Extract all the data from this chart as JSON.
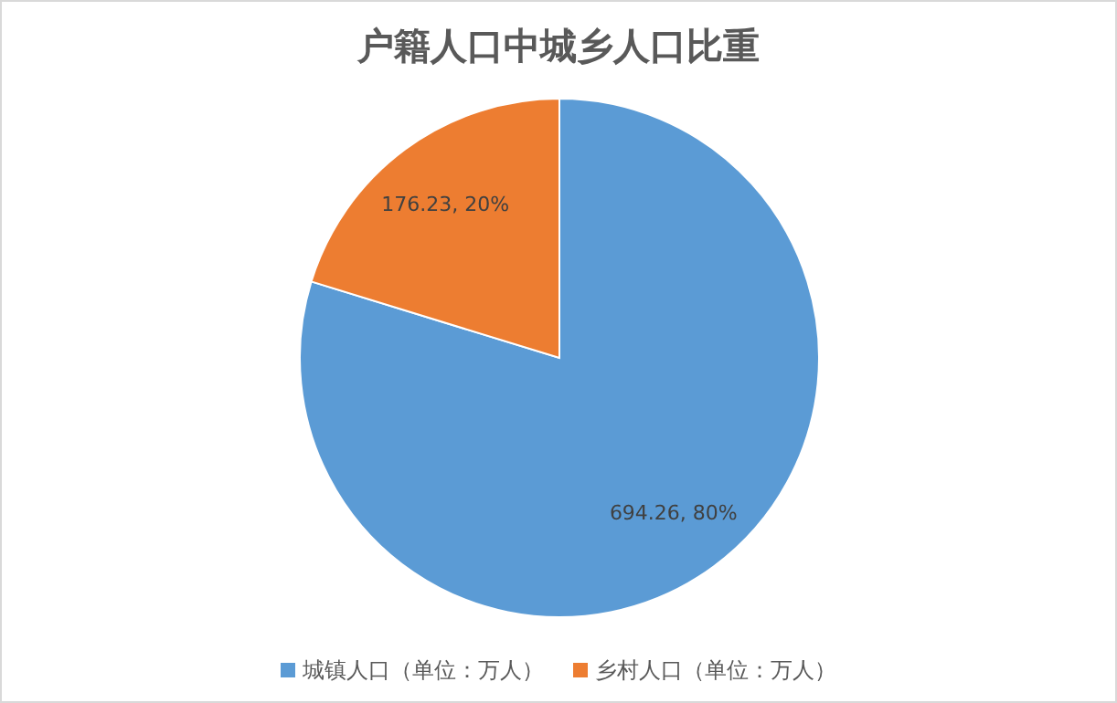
{
  "chart_data": {
    "type": "pie",
    "title": "户籍人口中城乡人口比重",
    "categories": [
      "城镇人口（单位：万人）",
      "乡村人口（单位：万人）"
    ],
    "values": [
      694.26,
      176.23
    ],
    "colors": [
      "#5b9bd5",
      "#ed7d31"
    ],
    "value_labels": [
      "694.26, 80%",
      "176.23, 20%"
    ],
    "legend": "bottom"
  }
}
